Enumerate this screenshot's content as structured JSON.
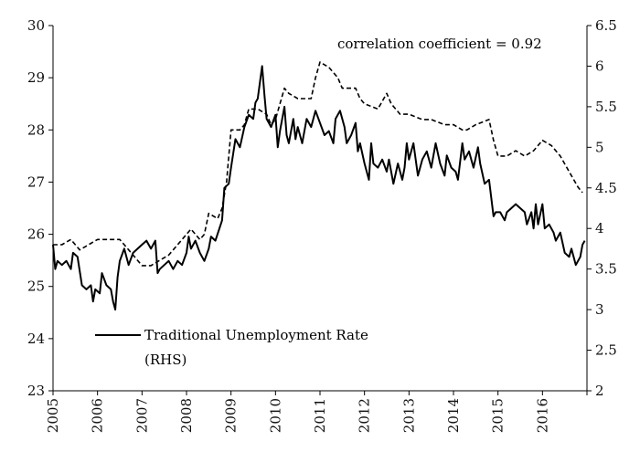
{
  "chart_data": {
    "type": "line",
    "annotation": "correlation coefficient = 0.92",
    "x_axis": {
      "min": 2005.0,
      "max": 2017.0,
      "tick_values": [
        2005,
        2006,
        2007,
        2008,
        2009,
        2010,
        2011,
        2012,
        2013,
        2014,
        2015,
        2016
      ],
      "tick_labels": [
        "2005",
        "2006",
        "2007",
        "2008",
        "2009",
        "2010",
        "2011",
        "2012",
        "2013",
        "2014",
        "2015",
        "2016"
      ],
      "label_rotation": "vertical"
    },
    "y_left": {
      "min": 23,
      "max": 30,
      "ticks": [
        23,
        24,
        25,
        26,
        27,
        28,
        29,
        30
      ],
      "tick_labels": [
        "23",
        "24",
        "25",
        "26",
        "27",
        "28",
        "29",
        "30"
      ]
    },
    "y_right": {
      "min": 2,
      "max": 6.5,
      "ticks": [
        2,
        2.5,
        3,
        3.5,
        4,
        4.5,
        5,
        5.5,
        6,
        6.5
      ],
      "tick_labels": [
        "2",
        "2.5",
        "3",
        "3.5",
        "4",
        "4.5",
        "5",
        "5.5",
        "6",
        "6.5"
      ]
    },
    "grid": false,
    "legend": {
      "placement": "lower-left",
      "entries": [
        {
          "series": "traditional",
          "label_lines": [
            "Traditional Unemployment Rate",
            "(RHS)"
          ],
          "style": "solid"
        }
      ]
    },
    "series": [
      {
        "id": "dashed",
        "axis": "left",
        "style": "dashed",
        "color": "#000000",
        "points": [
          [
            2005.0,
            25.8
          ],
          [
            2005.2,
            25.8
          ],
          [
            2005.4,
            25.9
          ],
          [
            2005.6,
            25.7
          ],
          [
            2005.8,
            25.8
          ],
          [
            2006.0,
            25.9
          ],
          [
            2006.3,
            25.9
          ],
          [
            2006.5,
            25.9
          ],
          [
            2006.6,
            25.8
          ],
          [
            2006.8,
            25.6
          ],
          [
            2007.0,
            25.4
          ],
          [
            2007.2,
            25.4
          ],
          [
            2007.4,
            25.5
          ],
          [
            2007.6,
            25.6
          ],
          [
            2007.8,
            25.8
          ],
          [
            2008.0,
            26.0
          ],
          [
            2008.1,
            26.1
          ],
          [
            2008.2,
            26.0
          ],
          [
            2008.3,
            25.9
          ],
          [
            2008.4,
            26.0
          ],
          [
            2008.5,
            26.4
          ],
          [
            2008.7,
            26.3
          ],
          [
            2008.8,
            26.5
          ],
          [
            2008.9,
            27.0
          ],
          [
            2009.0,
            28.0
          ],
          [
            2009.2,
            28.0
          ],
          [
            2009.3,
            28.1
          ],
          [
            2009.4,
            28.4
          ],
          [
            2009.6,
            28.4
          ],
          [
            2009.8,
            28.3
          ],
          [
            2009.9,
            28.1
          ],
          [
            2010.0,
            28.2
          ],
          [
            2010.1,
            28.5
          ],
          [
            2010.2,
            28.8
          ],
          [
            2010.3,
            28.7
          ],
          [
            2010.5,
            28.6
          ],
          [
            2010.7,
            28.6
          ],
          [
            2010.8,
            28.6
          ],
          [
            2010.9,
            29.0
          ],
          [
            2011.0,
            29.3
          ],
          [
            2011.2,
            29.2
          ],
          [
            2011.4,
            29.0
          ],
          [
            2011.5,
            28.8
          ],
          [
            2011.8,
            28.8
          ],
          [
            2011.9,
            28.6
          ],
          [
            2012.0,
            28.5
          ],
          [
            2012.3,
            28.4
          ],
          [
            2012.5,
            28.7
          ],
          [
            2012.6,
            28.5
          ],
          [
            2012.8,
            28.3
          ],
          [
            2013.0,
            28.3
          ],
          [
            2013.3,
            28.2
          ],
          [
            2013.5,
            28.2
          ],
          [
            2013.8,
            28.1
          ],
          [
            2014.0,
            28.1
          ],
          [
            2014.2,
            28.0
          ],
          [
            2014.3,
            28.0
          ],
          [
            2014.5,
            28.1
          ],
          [
            2014.8,
            28.2
          ],
          [
            2014.9,
            27.8
          ],
          [
            2015.0,
            27.5
          ],
          [
            2015.2,
            27.5
          ],
          [
            2015.4,
            27.6
          ],
          [
            2015.6,
            27.5
          ],
          [
            2015.8,
            27.6
          ],
          [
            2016.0,
            27.8
          ],
          [
            2016.2,
            27.7
          ],
          [
            2016.4,
            27.5
          ],
          [
            2016.6,
            27.2
          ],
          [
            2016.8,
            26.9
          ],
          [
            2016.9,
            26.8
          ]
        ]
      },
      {
        "id": "traditional",
        "axis": "right",
        "style": "solid",
        "color": "#000000",
        "points": [
          [
            2005.0,
            3.8
          ],
          [
            2005.05,
            3.5
          ],
          [
            2005.1,
            3.6
          ],
          [
            2005.2,
            3.55
          ],
          [
            2005.3,
            3.6
          ],
          [
            2005.4,
            3.5
          ],
          [
            2005.45,
            3.7
          ],
          [
            2005.55,
            3.65
          ],
          [
            2005.65,
            3.3
          ],
          [
            2005.75,
            3.25
          ],
          [
            2005.85,
            3.3
          ],
          [
            2005.9,
            3.1
          ],
          [
            2005.95,
            3.25
          ],
          [
            2006.05,
            3.2
          ],
          [
            2006.1,
            3.45
          ],
          [
            2006.2,
            3.3
          ],
          [
            2006.3,
            3.25
          ],
          [
            2006.35,
            3.1
          ],
          [
            2006.4,
            3.0
          ],
          [
            2006.45,
            3.4
          ],
          [
            2006.5,
            3.6
          ],
          [
            2006.6,
            3.75
          ],
          [
            2006.7,
            3.55
          ],
          [
            2006.8,
            3.7
          ],
          [
            2006.9,
            3.75
          ],
          [
            2007.0,
            3.8
          ],
          [
            2007.1,
            3.85
          ],
          [
            2007.2,
            3.75
          ],
          [
            2007.3,
            3.85
          ],
          [
            2007.35,
            3.45
          ],
          [
            2007.4,
            3.5
          ],
          [
            2007.5,
            3.55
          ],
          [
            2007.6,
            3.6
          ],
          [
            2007.7,
            3.5
          ],
          [
            2007.8,
            3.6
          ],
          [
            2007.9,
            3.55
          ],
          [
            2008.0,
            3.7
          ],
          [
            2008.05,
            3.9
          ],
          [
            2008.1,
            3.75
          ],
          [
            2008.2,
            3.85
          ],
          [
            2008.3,
            3.7
          ],
          [
            2008.4,
            3.6
          ],
          [
            2008.5,
            3.75
          ],
          [
            2008.55,
            3.9
          ],
          [
            2008.65,
            3.85
          ],
          [
            2008.8,
            4.1
          ],
          [
            2008.85,
            4.5
          ],
          [
            2008.95,
            4.55
          ],
          [
            2009.0,
            4.75
          ],
          [
            2009.1,
            5.1
          ],
          [
            2009.2,
            5.0
          ],
          [
            2009.3,
            5.25
          ],
          [
            2009.4,
            5.4
          ],
          [
            2009.5,
            5.35
          ],
          [
            2009.55,
            5.55
          ],
          [
            2009.6,
            5.6
          ],
          [
            2009.7,
            6.0
          ],
          [
            2009.75,
            5.65
          ],
          [
            2009.8,
            5.35
          ],
          [
            2009.9,
            5.25
          ],
          [
            2010.0,
            5.4
          ],
          [
            2010.05,
            5.0
          ],
          [
            2010.1,
            5.2
          ],
          [
            2010.2,
            5.5
          ],
          [
            2010.25,
            5.15
          ],
          [
            2010.3,
            5.05
          ],
          [
            2010.4,
            5.35
          ],
          [
            2010.45,
            5.1
          ],
          [
            2010.5,
            5.25
          ],
          [
            2010.6,
            5.05
          ],
          [
            2010.7,
            5.35
          ],
          [
            2010.8,
            5.25
          ],
          [
            2010.9,
            5.45
          ],
          [
            2011.0,
            5.3
          ],
          [
            2011.1,
            5.15
          ],
          [
            2011.2,
            5.2
          ],
          [
            2011.3,
            5.05
          ],
          [
            2011.35,
            5.35
          ],
          [
            2011.45,
            5.45
          ],
          [
            2011.55,
            5.25
          ],
          [
            2011.6,
            5.05
          ],
          [
            2011.7,
            5.15
          ],
          [
            2011.8,
            5.3
          ],
          [
            2011.85,
            4.95
          ],
          [
            2011.9,
            5.05
          ],
          [
            2012.0,
            4.8
          ],
          [
            2012.1,
            4.6
          ],
          [
            2012.15,
            5.05
          ],
          [
            2012.2,
            4.8
          ],
          [
            2012.3,
            4.75
          ],
          [
            2012.4,
            4.85
          ],
          [
            2012.5,
            4.7
          ],
          [
            2012.55,
            4.85
          ],
          [
            2012.65,
            4.55
          ],
          [
            2012.75,
            4.8
          ],
          [
            2012.85,
            4.6
          ],
          [
            2012.9,
            4.75
          ],
          [
            2012.95,
            5.05
          ],
          [
            2013.0,
            4.85
          ],
          [
            2013.1,
            5.05
          ],
          [
            2013.2,
            4.65
          ],
          [
            2013.3,
            4.85
          ],
          [
            2013.4,
            4.95
          ],
          [
            2013.5,
            4.75
          ],
          [
            2013.6,
            5.05
          ],
          [
            2013.7,
            4.8
          ],
          [
            2013.8,
            4.65
          ],
          [
            2013.85,
            4.9
          ],
          [
            2013.95,
            4.75
          ],
          [
            2014.05,
            4.7
          ],
          [
            2014.1,
            4.6
          ],
          [
            2014.2,
            5.05
          ],
          [
            2014.25,
            4.85
          ],
          [
            2014.35,
            4.95
          ],
          [
            2014.45,
            4.75
          ],
          [
            2014.55,
            5.0
          ],
          [
            2014.6,
            4.8
          ],
          [
            2014.7,
            4.55
          ],
          [
            2014.8,
            4.6
          ],
          [
            2014.9,
            4.15
          ],
          [
            2014.95,
            4.2
          ],
          [
            2015.05,
            4.2
          ],
          [
            2015.15,
            4.1
          ],
          [
            2015.2,
            4.2
          ],
          [
            2015.3,
            4.25
          ],
          [
            2015.4,
            4.3
          ],
          [
            2015.5,
            4.25
          ],
          [
            2015.6,
            4.2
          ],
          [
            2015.65,
            4.05
          ],
          [
            2015.75,
            4.2
          ],
          [
            2015.8,
            4.0
          ],
          [
            2015.85,
            4.3
          ],
          [
            2015.9,
            4.05
          ],
          [
            2016.0,
            4.3
          ],
          [
            2016.05,
            4.0
          ],
          [
            2016.15,
            4.05
          ],
          [
            2016.25,
            3.95
          ],
          [
            2016.3,
            3.85
          ],
          [
            2016.4,
            3.95
          ],
          [
            2016.5,
            3.7
          ],
          [
            2016.6,
            3.65
          ],
          [
            2016.65,
            3.75
          ],
          [
            2016.75,
            3.55
          ],
          [
            2016.85,
            3.65
          ],
          [
            2016.9,
            3.8
          ],
          [
            2016.95,
            3.85
          ]
        ]
      }
    ]
  }
}
